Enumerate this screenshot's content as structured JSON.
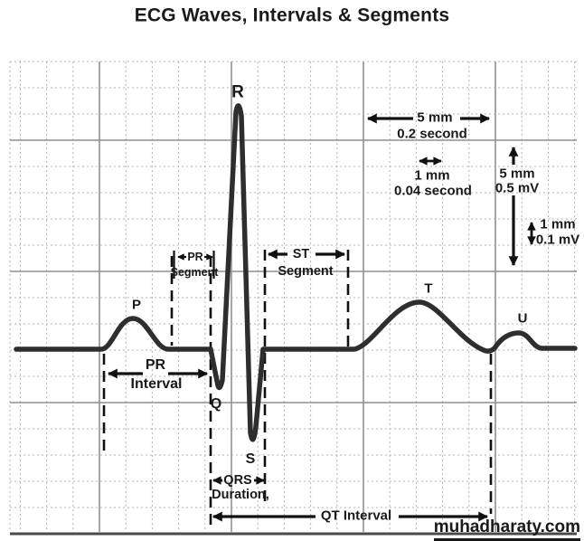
{
  "title": "ECG Waves, Intervals & Segments",
  "watermark": "muhadharaty.com",
  "waves": {
    "p": "P",
    "q": "Q",
    "r": "R",
    "s": "S",
    "t": "T",
    "u": "U"
  },
  "segments": {
    "pr_segment": {
      "line1": "PR",
      "line2": "Segment"
    },
    "st_segment": {
      "line1": "ST",
      "line2": "Segment"
    }
  },
  "intervals": {
    "pr_interval": {
      "line1": "PR",
      "line2": "Interval"
    },
    "qrs_duration": {
      "line1": "QRS",
      "line2": "Duration,"
    },
    "qt_interval": {
      "label": "QT Interval"
    }
  },
  "calibration": {
    "horizontal_large": {
      "line1": "5 mm",
      "line2": "0.2 second"
    },
    "horizontal_small": {
      "line1": "1 mm",
      "line2": "0.04 second"
    },
    "vertical_large": {
      "line1": "5 mm",
      "line2": "0.5 mV"
    },
    "vertical_small": {
      "line1": "1 mm",
      "line2": "0.1 mV"
    }
  },
  "colors": {
    "trace": "#2e2e2e",
    "grid_minor": "#b3b3b3",
    "grid_major": "#8f8f8f",
    "annotation": "#111111",
    "background": "#ffffff"
  }
}
